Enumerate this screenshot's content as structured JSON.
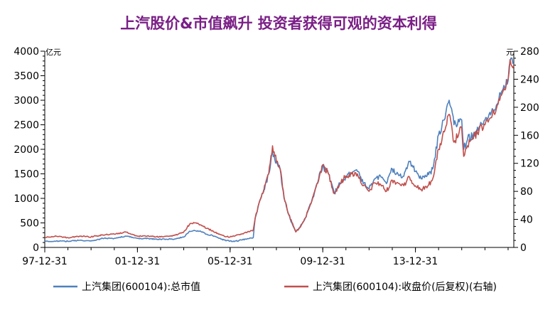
{
  "chart_data": {
    "type": "line",
    "title": "上汽股价&市值飙升 投资者获得可观的资本利得",
    "title_color": "#7a1f86",
    "x_tick_labels": [
      "97-12-31",
      "01-12-31",
      "05-12-31",
      "09-12-31",
      "13-12-31"
    ],
    "x_range": [
      "1997-12-31",
      "2018-03-31"
    ],
    "left_axis": {
      "unit": "亿元",
      "ylim": [
        0,
        4000
      ],
      "ticks": [
        0,
        500,
        1000,
        1500,
        2000,
        2500,
        3000,
        3500,
        4000
      ]
    },
    "right_axis": {
      "unit": "元",
      "ylim": [
        0,
        280
      ],
      "ticks": [
        0,
        40,
        80,
        120,
        160,
        200,
        240,
        280
      ]
    },
    "grid": false,
    "legend_position": "bottom",
    "series": [
      {
        "name": "上汽集团(600104):总市值",
        "axis": "left",
        "color": "#4f81bd",
        "points": [
          [
            "1997-12-31",
            120
          ],
          [
            "1998-06-30",
            130
          ],
          [
            "1998-12-31",
            125
          ],
          [
            "1999-06-30",
            145
          ],
          [
            "1999-12-31",
            130
          ],
          [
            "2000-06-30",
            185
          ],
          [
            "2000-12-31",
            185
          ],
          [
            "2001-06-30",
            230
          ],
          [
            "2001-12-31",
            185
          ],
          [
            "2002-06-30",
            180
          ],
          [
            "2002-12-31",
            165
          ],
          [
            "2003-06-30",
            170
          ],
          [
            "2003-12-31",
            210
          ],
          [
            "2004-03-31",
            330
          ],
          [
            "2004-06-30",
            340
          ],
          [
            "2004-09-30",
            320
          ],
          [
            "2004-12-31",
            270
          ],
          [
            "2005-03-31",
            240
          ],
          [
            "2005-06-30",
            190
          ],
          [
            "2005-09-30",
            150
          ],
          [
            "2005-12-31",
            130
          ],
          [
            "2006-03-31",
            130
          ],
          [
            "2006-06-30",
            150
          ],
          [
            "2006-09-30",
            180
          ],
          [
            "2006-12-31",
            200
          ],
          [
            "2007-01-31",
            600
          ],
          [
            "2007-03-31",
            900
          ],
          [
            "2007-05-31",
            1100
          ],
          [
            "2007-08-31",
            1500
          ],
          [
            "2007-10-31",
            1950
          ],
          [
            "2007-12-31",
            1750
          ],
          [
            "2008-02-28",
            1600
          ],
          [
            "2008-04-30",
            1000
          ],
          [
            "2008-06-30",
            700
          ],
          [
            "2008-08-31",
            500
          ],
          [
            "2008-10-31",
            320
          ],
          [
            "2008-12-31",
            400
          ],
          [
            "2009-03-31",
            600
          ],
          [
            "2009-06-30",
            900
          ],
          [
            "2009-09-30",
            1300
          ],
          [
            "2009-12-31",
            1650
          ],
          [
            "2010-03-31",
            1500
          ],
          [
            "2010-06-30",
            1100
          ],
          [
            "2010-09-30",
            1300
          ],
          [
            "2010-12-31",
            1450
          ],
          [
            "2011-03-31",
            1500
          ],
          [
            "2011-06-30",
            1550
          ],
          [
            "2011-09-30",
            1300
          ],
          [
            "2011-12-31",
            1200
          ],
          [
            "2012-03-31",
            1400
          ],
          [
            "2012-06-30",
            1450
          ],
          [
            "2012-09-30",
            1300
          ],
          [
            "2012-12-31",
            1600
          ],
          [
            "2013-03-31",
            1500
          ],
          [
            "2013-06-30",
            1450
          ],
          [
            "2013-09-30",
            1750
          ],
          [
            "2013-12-31",
            1550
          ],
          [
            "2014-03-31",
            1400
          ],
          [
            "2014-06-30",
            1450
          ],
          [
            "2014-09-30",
            1600
          ],
          [
            "2014-12-31",
            2300
          ],
          [
            "2015-03-31",
            2600
          ],
          [
            "2015-06-15",
            3000
          ],
          [
            "2015-08-31",
            2500
          ],
          [
            "2015-12-31",
            2600
          ],
          [
            "2016-01-31",
            2000
          ],
          [
            "2016-03-31",
            2200
          ],
          [
            "2016-06-30",
            2300
          ],
          [
            "2016-09-30",
            2450
          ],
          [
            "2016-12-31",
            2600
          ],
          [
            "2017-03-31",
            2700
          ],
          [
            "2017-06-30",
            2900
          ],
          [
            "2017-09-30",
            3200
          ],
          [
            "2017-12-31",
            3400
          ],
          [
            "2018-01-31",
            3800
          ],
          [
            "2018-03-31",
            3750
          ]
        ]
      },
      {
        "name": "上汽集团(600104):收盘价(后复权)(右轴)",
        "axis": "right",
        "color": "#c0504d",
        "points": [
          [
            "1997-12-31",
            14
          ],
          [
            "1998-06-30",
            16
          ],
          [
            "1998-12-31",
            14
          ],
          [
            "1999-06-30",
            16
          ],
          [
            "1999-12-31",
            15
          ],
          [
            "2000-06-30",
            18
          ],
          [
            "2000-12-31",
            19
          ],
          [
            "2001-06-30",
            22
          ],
          [
            "2001-12-31",
            16
          ],
          [
            "2002-06-30",
            16
          ],
          [
            "2002-12-31",
            15
          ],
          [
            "2003-06-30",
            16
          ],
          [
            "2003-12-31",
            22
          ],
          [
            "2004-03-31",
            33
          ],
          [
            "2004-06-30",
            35
          ],
          [
            "2004-09-30",
            32
          ],
          [
            "2004-12-31",
            27
          ],
          [
            "2005-03-31",
            24
          ],
          [
            "2005-06-30",
            19
          ],
          [
            "2005-09-30",
            16
          ],
          [
            "2005-12-31",
            15
          ],
          [
            "2006-03-31",
            17
          ],
          [
            "2006-06-30",
            19
          ],
          [
            "2006-09-30",
            22
          ],
          [
            "2006-12-31",
            25
          ],
          [
            "2007-01-31",
            42
          ],
          [
            "2007-03-31",
            63
          ],
          [
            "2007-05-31",
            77
          ],
          [
            "2007-08-31",
            105
          ],
          [
            "2007-10-31",
            145
          ],
          [
            "2007-12-31",
            123
          ],
          [
            "2008-02-28",
            112
          ],
          [
            "2008-04-30",
            72
          ],
          [
            "2008-06-30",
            50
          ],
          [
            "2008-08-31",
            36
          ],
          [
            "2008-10-31",
            22
          ],
          [
            "2008-12-31",
            28
          ],
          [
            "2009-03-31",
            42
          ],
          [
            "2009-06-30",
            63
          ],
          [
            "2009-09-30",
            91
          ],
          [
            "2009-12-31",
            118
          ],
          [
            "2010-03-31",
            105
          ],
          [
            "2010-06-30",
            77
          ],
          [
            "2010-09-30",
            91
          ],
          [
            "2010-12-31",
            102
          ],
          [
            "2011-03-31",
            105
          ],
          [
            "2011-06-30",
            105
          ],
          [
            "2011-09-30",
            88
          ],
          [
            "2011-12-31",
            80
          ],
          [
            "2012-03-31",
            92
          ],
          [
            "2012-06-30",
            90
          ],
          [
            "2012-09-30",
            80
          ],
          [
            "2012-12-31",
            96
          ],
          [
            "2013-03-31",
            92
          ],
          [
            "2013-06-30",
            88
          ],
          [
            "2013-09-30",
            100
          ],
          [
            "2013-12-31",
            88
          ],
          [
            "2014-03-31",
            83
          ],
          [
            "2014-06-30",
            85
          ],
          [
            "2014-09-30",
            98
          ],
          [
            "2014-12-31",
            140
          ],
          [
            "2015-03-31",
            165
          ],
          [
            "2015-06-15",
            190
          ],
          [
            "2015-08-31",
            150
          ],
          [
            "2015-12-31",
            170
          ],
          [
            "2016-01-31",
            130
          ],
          [
            "2016-03-31",
            145
          ],
          [
            "2016-06-30",
            155
          ],
          [
            "2016-09-30",
            168
          ],
          [
            "2016-12-31",
            175
          ],
          [
            "2017-03-31",
            185
          ],
          [
            "2017-06-30",
            198
          ],
          [
            "2017-09-30",
            220
          ],
          [
            "2017-12-31",
            240
          ],
          [
            "2018-01-31",
            268
          ],
          [
            "2018-03-31",
            260
          ]
        ]
      }
    ]
  }
}
